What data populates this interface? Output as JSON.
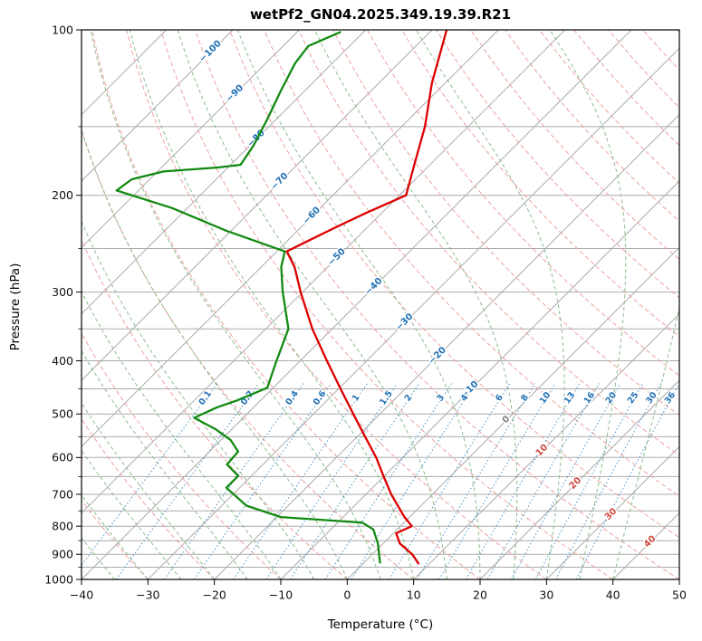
{
  "chart_data": {
    "type": "skewt_log_p",
    "title": "wetPf2_GN04.2025.349.19.39.R21",
    "xlabel": "Temperature (°C)",
    "ylabel": "Pressure (hPa)",
    "xlim": [
      -40,
      50
    ],
    "pressure_lim": [
      1000,
      100
    ],
    "x_ticks": [
      -40,
      -30,
      -20,
      -10,
      0,
      10,
      20,
      30,
      40,
      50
    ],
    "pressure_ticks": [
      100,
      200,
      300,
      400,
      500,
      600,
      700,
      800,
      900,
      1000
    ],
    "isobar_minor_step": 50,
    "grid": true,
    "skew_deg": 45,
    "isotherms": {
      "min": -110,
      "max": 50,
      "step": 10
    },
    "dry_adiabats": {
      "min": -40,
      "max": 200,
      "step": 10
    },
    "moist_adiabats": {
      "min": -40,
      "max": 40,
      "step": 5
    },
    "mixing_ratio_lines_g_kg": [
      0.1,
      0.2,
      0.4,
      0.6,
      1,
      1.5,
      2,
      3,
      4,
      6,
      8,
      10,
      13,
      16,
      20,
      25,
      30,
      36
    ],
    "mixing_ratio_label_pressure": 465,
    "mixing_ratio_line_top_pressure": 440,
    "isotherm_labels": [
      {
        "t": -100,
        "p": 109
      },
      {
        "t": -90,
        "p": 130
      },
      {
        "t": -80,
        "p": 157
      },
      {
        "t": -70,
        "p": 188
      },
      {
        "t": -60,
        "p": 217
      },
      {
        "t": -50,
        "p": 258
      },
      {
        "t": -40,
        "p": 292
      },
      {
        "t": -30,
        "p": 339
      },
      {
        "t": -20,
        "p": 390
      },
      {
        "t": -10,
        "p": 450
      },
      {
        "t": 0,
        "p": 510
      },
      {
        "t": 10,
        "p": 580
      },
      {
        "t": 20,
        "p": 666
      },
      {
        "t": 30,
        "p": 758
      },
      {
        "t": 40,
        "p": 850
      }
    ],
    "colors": {
      "temperature": "#dd0000",
      "dewpoint": "#128a12",
      "isotherm": "#ababab",
      "isobar": "#ababab",
      "dry_adiabat": "#eda0a0",
      "moist_adiabat": "#8cbc8c",
      "mixing_ratio": "#4a94c9",
      "mixing_label": "#2070b4",
      "label_negative": "#2070b4",
      "label_zero": "#808080",
      "label_positive": "#d04a3f",
      "axis": "#000000"
    },
    "series": [
      {
        "name": "temperature",
        "points": [
          [
            935,
            8.3
          ],
          [
            900,
            6.0
          ],
          [
            860,
            2.5
          ],
          [
            824,
            0.4
          ],
          [
            800,
            1.7
          ],
          [
            767,
            -1.0
          ],
          [
            700,
            -6.2
          ],
          [
            650,
            -10.0
          ],
          [
            600,
            -14.0
          ],
          [
            550,
            -18.8
          ],
          [
            500,
            -24.0
          ],
          [
            450,
            -29.7
          ],
          [
            400,
            -36.0
          ],
          [
            350,
            -43.0
          ],
          [
            300,
            -50.3
          ],
          [
            270,
            -55.0
          ],
          [
            253,
            -58.5
          ],
          [
            230,
            -55.0
          ],
          [
            215,
            -52.3
          ],
          [
            200,
            -49.0
          ],
          [
            175,
            -52.5
          ],
          [
            150,
            -56.5
          ],
          [
            125,
            -62.0
          ],
          [
            100,
            -67.8
          ]
        ]
      },
      {
        "name": "dewpoint",
        "points": [
          [
            932,
            2.4
          ],
          [
            860,
            -0.8
          ],
          [
            811,
            -3.6
          ],
          [
            788,
            -6.3
          ],
          [
            770,
            -19.4
          ],
          [
            734,
            -26.3
          ],
          [
            681,
            -32.0
          ],
          [
            648,
            -32.0
          ],
          [
            618,
            -35.4
          ],
          [
            585,
            -35.7
          ],
          [
            558,
            -38.5
          ],
          [
            532,
            -42.6
          ],
          [
            508,
            -47.4
          ],
          [
            486,
            -45.5
          ],
          [
            472,
            -43.5
          ],
          [
            448,
            -40.9
          ],
          [
            403,
            -43.4
          ],
          [
            350,
            -46.6
          ],
          [
            300,
            -53.0
          ],
          [
            270,
            -57.0
          ],
          [
            253,
            -58.8
          ],
          [
            232,
            -70.7
          ],
          [
            211,
            -82.3
          ],
          [
            196,
            -93.3
          ],
          [
            187,
            -92.7
          ],
          [
            181,
            -89.1
          ],
          [
            178,
            -81.5
          ],
          [
            176,
            -78.5
          ],
          [
            162,
            -79.5
          ],
          [
            145,
            -81.4
          ],
          [
            129,
            -83.6
          ],
          [
            115,
            -85.6
          ],
          [
            107,
            -86.2
          ],
          [
            101,
            -83.5
          ]
        ]
      }
    ]
  }
}
